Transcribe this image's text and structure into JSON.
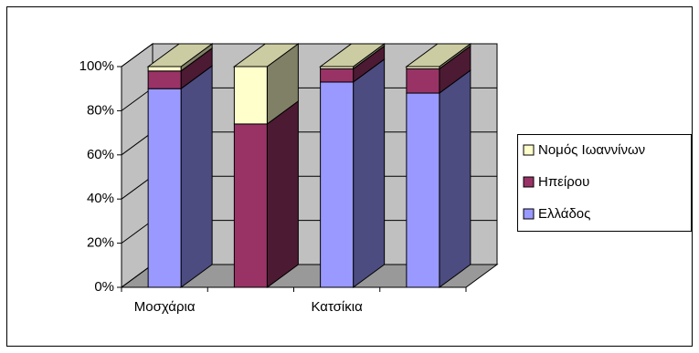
{
  "chart_data": {
    "type": "bar3d_stacked",
    "categories": [
      "Μοσχάρια",
      null,
      "Κατσίκια",
      null
    ],
    "series": [
      {
        "name": "Ελλάδος",
        "color": "#9999ff",
        "values": [
          90,
          0,
          93,
          88
        ]
      },
      {
        "name": "Ηπείρου",
        "color": "#993366",
        "values": [
          8,
          74,
          6,
          11
        ]
      },
      {
        "name": "Νομός Ιωαννίνων",
        "color": "#ffffcc",
        "values": [
          2,
          26,
          1,
          1
        ]
      }
    ],
    "ylim": [
      0,
      100
    ],
    "yticks": [
      {
        "value": 0,
        "label": "0%"
      },
      {
        "value": 20,
        "label": "20%"
      },
      {
        "value": 40,
        "label": "40%"
      },
      {
        "value": 60,
        "label": "60%"
      },
      {
        "value": 80,
        "label": "80%"
      },
      {
        "value": 100,
        "label": "100%"
      }
    ],
    "grid": true,
    "legend": "right"
  }
}
